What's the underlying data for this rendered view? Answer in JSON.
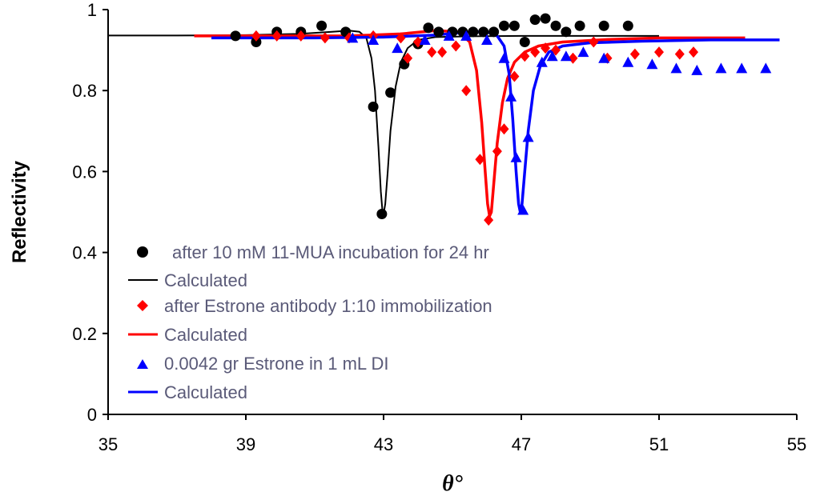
{
  "chart_data": {
    "type": "scatter",
    "title": "",
    "xlabel": "θ°",
    "ylabel": "Reflectivity",
    "xlim": [
      35,
      55
    ],
    "ylim": [
      0,
      1
    ],
    "xticks": [
      "35",
      "39",
      "43",
      "47",
      "51",
      "55"
    ],
    "xtick_values": [
      35,
      39,
      43,
      47,
      51,
      55
    ],
    "yticks": [
      "0",
      "0.2",
      "0.4",
      "0.6",
      "0.8",
      "1"
    ],
    "ytick_values": [
      0,
      0.2,
      0.4,
      0.6,
      0.8,
      1.0
    ],
    "grid": false,
    "legend_position": "center-left",
    "series": [
      {
        "name": "after 10 mM 11-MUA incubation for 24 hr",
        "kind": "points",
        "marker": "circle",
        "color": "#000000",
        "x": [
          38.7,
          39.3,
          39.9,
          40.6,
          41.2,
          41.9,
          42.7,
          42.95,
          43.2,
          43.6,
          44.0,
          44.3,
          44.6,
          45.0,
          45.3,
          45.6,
          45.9,
          46.2,
          46.5,
          46.8,
          47.1,
          47.4,
          47.7,
          48.0,
          48.3,
          48.7,
          49.4,
          50.1
        ],
        "y": [
          0.935,
          0.92,
          0.945,
          0.945,
          0.96,
          0.945,
          0.76,
          0.495,
          0.795,
          0.865,
          0.915,
          0.955,
          0.945,
          0.945,
          0.945,
          0.945,
          0.945,
          0.945,
          0.96,
          0.96,
          0.92,
          0.975,
          0.978,
          0.96,
          0.945,
          0.96,
          0.96,
          0.96
        ]
      },
      {
        "name": "Calculated",
        "kind": "line",
        "color": "#000000",
        "x": [
          35.0,
          37.0,
          39.0,
          40.5,
          41.5,
          42.0,
          42.3,
          42.5,
          42.65,
          42.75,
          42.85,
          42.92,
          42.97,
          43.0,
          43.05,
          43.12,
          43.2,
          43.35,
          43.5,
          43.7,
          44.0,
          44.5,
          45.5,
          47.0,
          49.0,
          51.0
        ],
        "y": [
          0.936,
          0.936,
          0.937,
          0.94,
          0.945,
          0.948,
          0.945,
          0.93,
          0.88,
          0.8,
          0.66,
          0.55,
          0.5,
          0.495,
          0.52,
          0.6,
          0.7,
          0.81,
          0.87,
          0.905,
          0.925,
          0.932,
          0.934,
          0.935,
          0.935,
          0.935
        ]
      },
      {
        "name": "after  Estrone antibody 1:10 immobilization",
        "kind": "points",
        "marker": "diamond",
        "color": "#ff0000",
        "x": [
          39.3,
          39.9,
          40.6,
          41.3,
          42.0,
          42.7,
          43.5,
          43.7,
          44.0,
          44.4,
          44.7,
          45.1,
          45.4,
          45.8,
          46.05,
          46.3,
          46.5,
          46.8,
          47.1,
          47.4,
          47.7,
          48.0,
          48.5,
          49.1,
          49.5,
          50.3,
          51.0,
          51.6,
          52.0
        ],
        "y": [
          0.935,
          0.935,
          0.935,
          0.93,
          0.93,
          0.935,
          0.93,
          0.88,
          0.92,
          0.895,
          0.895,
          0.91,
          0.8,
          0.63,
          0.48,
          0.65,
          0.705,
          0.835,
          0.885,
          0.895,
          0.905,
          0.9,
          0.88,
          0.92,
          0.88,
          0.89,
          0.895,
          0.89,
          0.895
        ]
      },
      {
        "name": "Calculated",
        "kind": "line",
        "color": "#ff0000",
        "x": [
          37.5,
          40.0,
          42.0,
          43.5,
          44.5,
          45.2,
          45.5,
          45.7,
          45.85,
          45.95,
          46.02,
          46.08,
          46.13,
          46.2,
          46.3,
          46.45,
          46.6,
          46.8,
          47.1,
          47.5,
          48.2,
          49.5,
          51.0,
          53.5
        ],
        "y": [
          0.935,
          0.935,
          0.935,
          0.94,
          0.948,
          0.945,
          0.92,
          0.85,
          0.72,
          0.6,
          0.52,
          0.49,
          0.5,
          0.57,
          0.67,
          0.77,
          0.83,
          0.87,
          0.895,
          0.91,
          0.92,
          0.926,
          0.93,
          0.93
        ]
      },
      {
        "name": "0.0042 gr Estrone in 1 mL DI",
        "kind": "points",
        "marker": "triangle",
        "color": "#0000ff",
        "x": [
          42.1,
          42.7,
          43.4,
          44.2,
          44.9,
          45.4,
          46.0,
          46.5,
          46.7,
          46.85,
          47.05,
          47.2,
          47.6,
          47.9,
          48.3,
          48.8,
          49.4,
          50.1,
          50.8,
          51.5,
          52.1,
          52.8,
          53.4,
          54.1
        ],
        "y": [
          0.93,
          0.925,
          0.905,
          0.925,
          0.935,
          0.935,
          0.925,
          0.88,
          0.785,
          0.635,
          0.505,
          0.685,
          0.87,
          0.885,
          0.885,
          0.895,
          0.88,
          0.87,
          0.865,
          0.855,
          0.85,
          0.855,
          0.855,
          0.855
        ]
      },
      {
        "name": "Calculated",
        "kind": "line",
        "color": "#0000ff",
        "x": [
          38.0,
          41.0,
          43.0,
          44.5,
          45.5,
          46.0,
          46.3,
          46.5,
          46.65,
          46.75,
          46.85,
          46.92,
          46.97,
          47.02,
          47.1,
          47.2,
          47.35,
          47.55,
          47.8,
          48.2,
          49.0,
          50.5,
          52.5,
          54.5
        ],
        "y": [
          0.93,
          0.93,
          0.932,
          0.937,
          0.945,
          0.945,
          0.935,
          0.91,
          0.84,
          0.73,
          0.6,
          0.52,
          0.5,
          0.52,
          0.6,
          0.7,
          0.8,
          0.86,
          0.895,
          0.91,
          0.918,
          0.922,
          0.925,
          0.925
        ]
      }
    ]
  }
}
